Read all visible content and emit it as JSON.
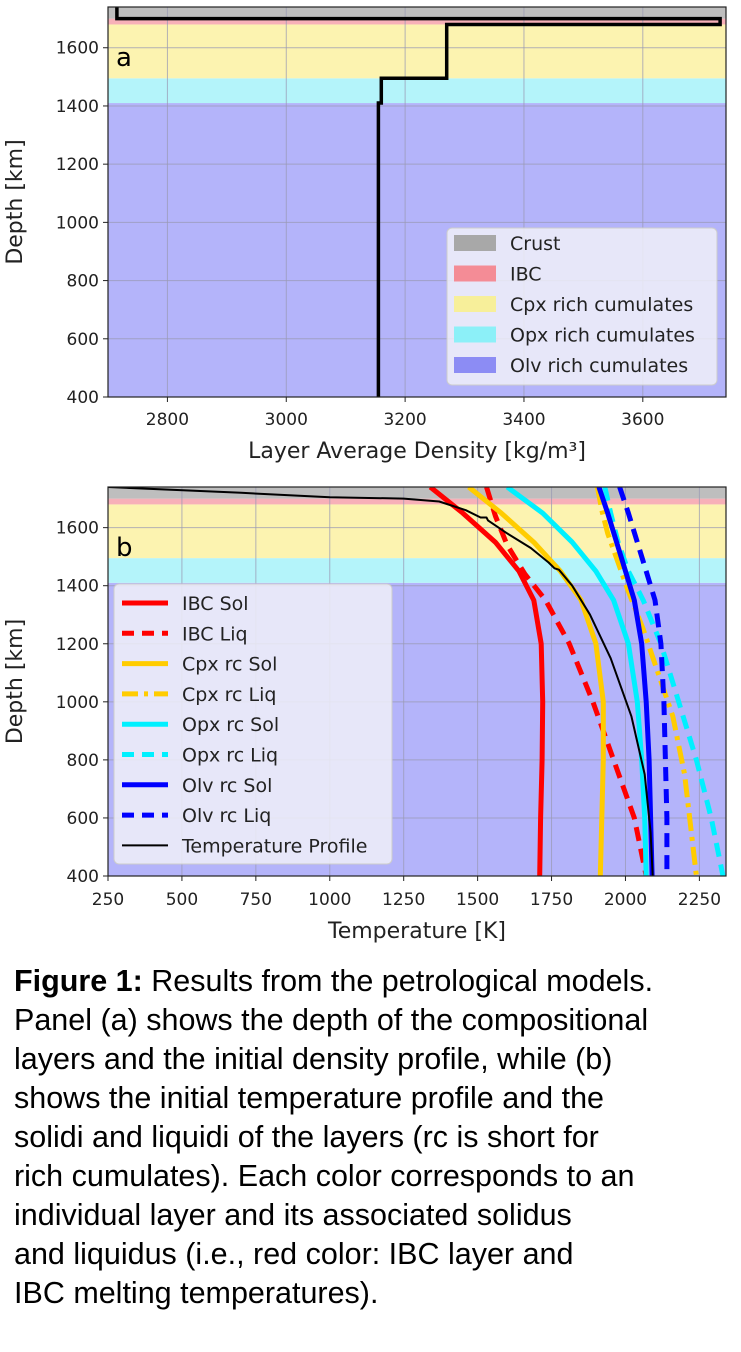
{
  "chart_data": [
    {
      "panel_label": "a",
      "type": "line",
      "xlabel": "Layer Average Density [kg/m³]",
      "ylabel": "Depth [km]",
      "xlim": [
        2700,
        3740
      ],
      "ylim": [
        400,
        1740
      ],
      "xticks": [
        2800,
        3000,
        3200,
        3400,
        3600
      ],
      "yticks": [
        400,
        600,
        800,
        1000,
        1200,
        1400,
        1600
      ],
      "grid": true,
      "layers": [
        {
          "name": "Olv rich cumulates",
          "from": 400,
          "to": 1410,
          "color": "#b4b4fa"
        },
        {
          "name": "Opx rich cumulates",
          "from": 1410,
          "to": 1495,
          "color": "#b4f4fa"
        },
        {
          "name": "Cpx rich cumulates",
          "from": 1495,
          "to": 1680,
          "color": "#fcf3b0"
        },
        {
          "name": "IBC",
          "from": 1680,
          "to": 1700,
          "color": "#f7b0b8"
        },
        {
          "name": "Crust",
          "from": 1700,
          "to": 1740,
          "color": "#bebebe"
        }
      ],
      "legend": {
        "placement": "lower-right",
        "entries": [
          "Crust",
          "IBC",
          "Cpx rich cumulates",
          "Opx rich cumulates",
          "Olv rich cumulates"
        ]
      },
      "series": [
        {
          "color": "#000000",
          "points": [
            [
              3155,
              400
            ],
            [
              3155,
              1410
            ],
            [
              3160,
              1410
            ],
            [
              3160,
              1495
            ],
            [
              3270,
              1495
            ],
            [
              3270,
              1680
            ],
            [
              3730,
              1680
            ],
            [
              3730,
              1700
            ],
            [
              2715,
              1700
            ],
            [
              2715,
              1740
            ]
          ]
        }
      ]
    },
    {
      "panel_label": "b",
      "type": "line",
      "xlabel": "Temperature [K]",
      "ylabel": "Depth [km]",
      "xlim": [
        250,
        2340
      ],
      "ylim": [
        400,
        1740
      ],
      "xticks": [
        250,
        500,
        750,
        1000,
        1250,
        1500,
        1750,
        2000,
        2250
      ],
      "yticks": [
        400,
        600,
        800,
        1000,
        1200,
        1400,
        1600
      ],
      "grid": true,
      "legend": {
        "placement": "lower-left"
      },
      "series": [
        {
          "name": "IBC Sol",
          "color": "#ff0000",
          "style": "solid",
          "points": [
            [
              1340,
              1740
            ],
            [
              1450,
              1650
            ],
            [
              1560,
              1550
            ],
            [
              1640,
              1450
            ],
            [
              1690,
              1350
            ],
            [
              1715,
              1200
            ],
            [
              1720,
              1000
            ],
            [
              1718,
              800
            ],
            [
              1713,
              600
            ],
            [
              1710,
              400
            ]
          ]
        },
        {
          "name": "IBC Liq",
          "color": "#ff0000",
          "style": "dashed",
          "points": [
            [
              1530,
              1740
            ],
            [
              1560,
              1640
            ],
            [
              1600,
              1540
            ],
            [
              1660,
              1440
            ],
            [
              1730,
              1350
            ],
            [
              1810,
              1200
            ],
            [
              1890,
              1000
            ],
            [
              1960,
              800
            ],
            [
              2030,
              600
            ],
            [
              2070,
              400
            ]
          ]
        },
        {
          "name": "Cpx rc Sol",
          "color": "#ffcc00",
          "style": "solid",
          "points": [
            [
              1470,
              1740
            ],
            [
              1580,
              1650
            ],
            [
              1690,
              1550
            ],
            [
              1780,
              1450
            ],
            [
              1850,
              1350
            ],
            [
              1900,
              1200
            ],
            [
              1925,
              1000
            ],
            [
              1925,
              800
            ],
            [
              1920,
              600
            ],
            [
              1915,
              400
            ]
          ]
        },
        {
          "name": "Cpx rc Liq",
          "color": "#ffcc00",
          "style": "dashdot",
          "points": [
            [
              1905,
              1740
            ],
            [
              1920,
              1660
            ],
            [
              1940,
              1580
            ],
            [
              1975,
              1480
            ],
            [
              2010,
              1380
            ],
            [
              2060,
              1250
            ],
            [
              2110,
              1100
            ],
            [
              2160,
              950
            ],
            [
              2200,
              750
            ],
            [
              2240,
              400
            ]
          ]
        },
        {
          "name": "Opx rc Sol",
          "color": "#00f0ff",
          "style": "solid",
          "points": [
            [
              1600,
              1740
            ],
            [
              1720,
              1650
            ],
            [
              1820,
              1550
            ],
            [
              1900,
              1450
            ],
            [
              1960,
              1350
            ],
            [
              2010,
              1200
            ],
            [
              2040,
              1000
            ],
            [
              2055,
              800
            ],
            [
              2065,
              600
            ],
            [
              2070,
              400
            ]
          ]
        },
        {
          "name": "Opx rc Liq",
          "color": "#00f0ff",
          "style": "dashed",
          "points": [
            [
              1930,
              1740
            ],
            [
              1950,
              1650
            ],
            [
              1975,
              1550
            ],
            [
              2010,
              1450
            ],
            [
              2060,
              1350
            ],
            [
              2120,
              1200
            ],
            [
              2180,
              1000
            ],
            [
              2240,
              800
            ],
            [
              2290,
              600
            ],
            [
              2330,
              400
            ]
          ]
        },
        {
          "name": "Olv rc Sol",
          "color": "#0000ff",
          "style": "solid",
          "points": [
            [
              1910,
              1740
            ],
            [
              1940,
              1650
            ],
            [
              1970,
              1550
            ],
            [
              2000,
              1450
            ],
            [
              2030,
              1350
            ],
            [
              2055,
              1200
            ],
            [
              2070,
              1000
            ],
            [
              2080,
              800
            ],
            [
              2085,
              600
            ],
            [
              2090,
              400
            ]
          ]
        },
        {
          "name": "Olv rc Liq",
          "color": "#0000ff",
          "style": "dashed",
          "points": [
            [
              1980,
              1740
            ],
            [
              2010,
              1650
            ],
            [
              2040,
              1550
            ],
            [
              2070,
              1450
            ],
            [
              2100,
              1350
            ],
            [
              2120,
              1200
            ],
            [
              2130,
              1000
            ],
            [
              2135,
              800
            ],
            [
              2140,
              600
            ],
            [
              2140,
              400
            ]
          ]
        },
        {
          "name": "Temperature Profile",
          "color": "#000000",
          "style": "solid",
          "width": 2,
          "points": [
            [
              250,
              1740
            ],
            [
              700,
              1720
            ],
            [
              1000,
              1705
            ],
            [
              1250,
              1700
            ],
            [
              1370,
              1690
            ],
            [
              1460,
              1660
            ],
            [
              1510,
              1635
            ],
            [
              1530,
              1635
            ],
            [
              1535,
              1625
            ],
            [
              1600,
              1580
            ],
            [
              1680,
              1530
            ],
            [
              1740,
              1480
            ],
            [
              1760,
              1460
            ],
            [
              1775,
              1455
            ],
            [
              1820,
              1400
            ],
            [
              1880,
              1300
            ],
            [
              1950,
              1150
            ],
            [
              2020,
              950
            ],
            [
              2065,
              750
            ],
            [
              2085,
              550
            ],
            [
              2092,
              400
            ]
          ]
        }
      ],
      "background_layers": [
        "Olv rich cumulates",
        "Opx rich cumulates",
        "Cpx rich cumulates",
        "IBC",
        "Crust"
      ]
    }
  ],
  "caption": {
    "label": "Figure 1:",
    "lines": [
      " Results from the petrological models.",
      "Panel (a) shows the depth of the compositional",
      "layers and the initial density profile, while (b)",
      "shows the initial temperature profile and the",
      "solidi and liquidi of the layers (rc is short for",
      "rich cumulates). Each color corresponds to an",
      "individual layer and its associated solidus",
      "and liquidus (i.e., red color: IBC layer and",
      "IBC melting temperatures)."
    ]
  }
}
